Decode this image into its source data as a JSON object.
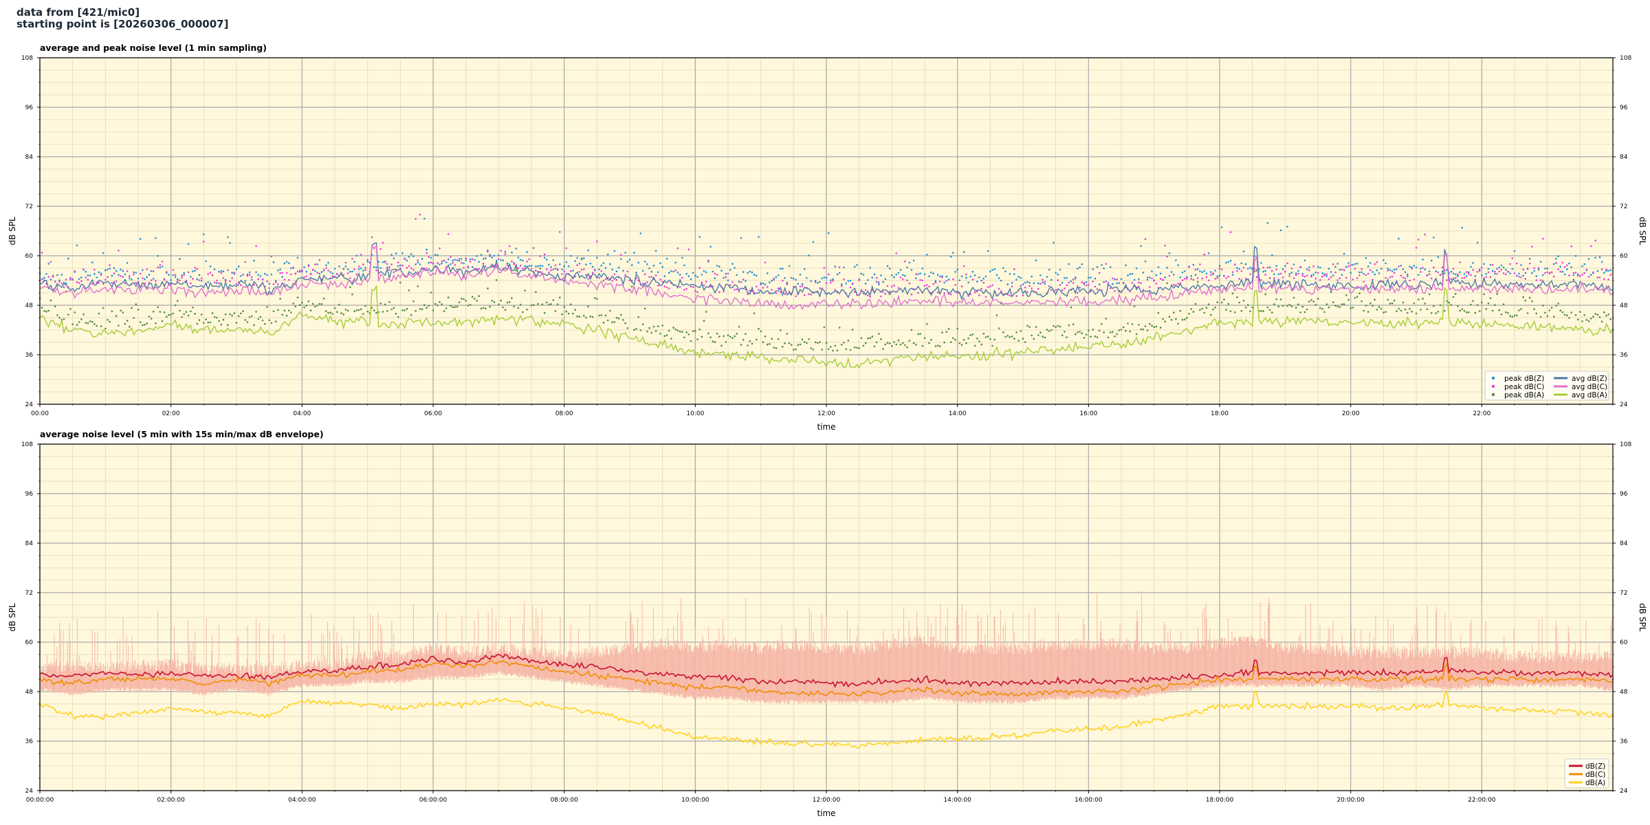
{
  "header": {
    "line1": "data from [421/mic0]",
    "line2": "starting point is [20260306_000007]"
  },
  "colors": {
    "background": "#fff8dc",
    "peak_z": "#1f8fd6",
    "peak_c": "#e83ad8",
    "peak_a": "#4f8a3c",
    "avg_z": "#4a78a8",
    "avg_c": "#e070d0",
    "avg_a": "#a6cc36",
    "db_z": "#c8102e",
    "db_c": "#f08c00",
    "db_a": "#ffd21f",
    "envelope": "#f6b8a8"
  },
  "chart_data": [
    {
      "type": "line",
      "title": "average and peak noise level (1 min sampling)",
      "xlabel": "time",
      "ylabel": "dB SPL",
      "ylim": [
        24,
        108
      ],
      "yticks": [
        "24",
        "36",
        "48",
        "60",
        "72",
        "84",
        "96",
        "108"
      ],
      "xlim_hours": [
        0,
        24
      ],
      "xticks": [
        "00:00",
        "02:00",
        "04:00",
        "06:00",
        "08:00",
        "10:00",
        "12:00",
        "14:00",
        "16:00",
        "18:00",
        "20:00",
        "22:00"
      ],
      "grid": true,
      "legend_position": "bottom-right",
      "x_hours": [
        0,
        0.5,
        1,
        1.5,
        2,
        2.5,
        3,
        3.5,
        4,
        4.5,
        5,
        5.5,
        6,
        6.5,
        7,
        7.5,
        8,
        8.5,
        9,
        9.5,
        10,
        10.5,
        11,
        11.5,
        12,
        12.5,
        13,
        13.5,
        14,
        14.5,
        15,
        15.5,
        16,
        16.5,
        17,
        17.5,
        18,
        18.5,
        19,
        19.5,
        20,
        20.5,
        21,
        21.5,
        22,
        22.5,
        23,
        23.5,
        24
      ],
      "series": [
        {
          "name": "peak dB(Z)",
          "kind": "peak",
          "values": [
            54,
            53,
            55,
            54,
            54,
            53,
            54,
            53,
            55,
            55,
            56,
            57,
            58,
            57,
            58,
            57,
            56,
            56,
            56,
            55,
            54,
            54,
            53,
            53,
            53,
            53,
            53,
            54,
            53,
            53,
            53,
            53,
            53,
            53,
            54,
            54,
            55,
            55,
            55,
            55,
            55,
            55,
            55,
            55,
            55,
            55,
            55,
            55,
            55
          ]
        },
        {
          "name": "peak dB(C)",
          "kind": "peak",
          "values": [
            53,
            52,
            53,
            53,
            53,
            52,
            53,
            52,
            54,
            54,
            55,
            56,
            57,
            56,
            57,
            56,
            55,
            54,
            53,
            52,
            51,
            51,
            50,
            50,
            50,
            50,
            50,
            51,
            50,
            50,
            50,
            51,
            51,
            51,
            52,
            53,
            54,
            54,
            54,
            54,
            54,
            53,
            54,
            53,
            54,
            54,
            54,
            54,
            54
          ]
        },
        {
          "name": "peak dB(A)",
          "kind": "peak",
          "values": [
            46,
            43,
            42,
            43,
            44,
            43,
            43,
            43,
            47,
            45,
            46,
            45,
            46,
            46,
            47,
            46,
            45,
            44,
            42,
            40,
            39,
            38,
            38,
            37,
            37,
            37,
            37,
            38,
            38,
            38,
            39,
            40,
            40,
            40,
            42,
            44,
            46,
            46,
            46,
            46,
            46,
            46,
            46,
            46,
            46,
            45,
            45,
            44,
            44
          ]
        },
        {
          "name": "avg dB(Z)",
          "kind": "avg",
          "values": [
            53,
            52.5,
            53.5,
            53,
            53,
            52.5,
            53,
            52,
            54,
            54,
            55,
            55.5,
            57,
            56,
            57.5,
            56,
            55,
            55,
            54,
            53.5,
            52.5,
            52.5,
            51.5,
            51.5,
            51,
            51,
            51.5,
            52,
            51,
            51,
            51,
            51.5,
            51.5,
            51.5,
            52,
            52.5,
            53,
            53.5,
            53,
            53,
            53,
            53,
            53,
            53.5,
            53,
            53,
            53,
            53,
            52.5
          ]
        },
        {
          "name": "avg dB(C)",
          "kind": "avg",
          "values": [
            52,
            51,
            52,
            52,
            52,
            51,
            52,
            51,
            53,
            53,
            54,
            54.5,
            56,
            55,
            56.5,
            55,
            54,
            53,
            52,
            51,
            49.5,
            49.5,
            48.5,
            48,
            48,
            48,
            48.5,
            49.5,
            48.5,
            48.5,
            48.5,
            49,
            49,
            49,
            50,
            51,
            52,
            52,
            52,
            52,
            52,
            52,
            52,
            52,
            52,
            52,
            52,
            52,
            51.5
          ]
        },
        {
          "name": "avg dB(A)",
          "kind": "avg",
          "values": [
            45,
            42,
            41,
            42,
            43,
            42,
            42,
            41,
            46,
            44,
            44,
            43.5,
            44,
            44,
            45,
            44,
            43,
            42,
            40,
            38,
            36.5,
            36,
            35.5,
            34.5,
            34,
            34,
            34.5,
            35.5,
            35.5,
            36,
            36.5,
            37.5,
            38,
            38.5,
            40,
            42,
            44,
            44,
            44,
            44,
            44,
            43.5,
            44,
            44,
            43.5,
            43,
            43,
            42,
            42
          ]
        }
      ]
    },
    {
      "type": "line",
      "title": "average noise level (5 min with 15s min/max dB envelope)",
      "xlabel": "time",
      "ylabel": "dB SPL",
      "ylim": [
        24,
        108
      ],
      "yticks": [
        "24",
        "36",
        "48",
        "60",
        "72",
        "84",
        "96",
        "108"
      ],
      "xlim_hours": [
        0,
        24
      ],
      "xticks": [
        "00:00:00",
        "02:00:00",
        "04:00:00",
        "06:00:00",
        "08:00:00",
        "10:00:00",
        "12:00:00",
        "14:00:00",
        "16:00:00",
        "18:00:00",
        "20:00:00",
        "22:00:00"
      ],
      "grid": true,
      "legend_position": "bottom-right",
      "x_hours": [
        0,
        0.5,
        1,
        1.5,
        2,
        2.5,
        3,
        3.5,
        4,
        4.5,
        5,
        5.5,
        6,
        6.5,
        7,
        7.5,
        8,
        8.5,
        9,
        9.5,
        10,
        10.5,
        11,
        11.5,
        12,
        12.5,
        13,
        13.5,
        14,
        14.5,
        15,
        15.5,
        16,
        16.5,
        17,
        17.5,
        18,
        18.5,
        19,
        19.5,
        20,
        20.5,
        21,
        21.5,
        22,
        22.5,
        23,
        23.5,
        24
      ],
      "envelope_max": [
        55,
        56,
        55,
        56,
        56,
        55,
        55,
        55,
        56,
        56,
        58,
        58,
        60,
        59,
        60,
        59,
        58,
        59,
        60,
        61,
        60,
        61,
        60,
        61,
        60,
        60,
        61,
        62,
        60,
        60,
        60,
        61,
        61,
        61,
        60,
        60,
        61,
        62,
        60,
        60,
        59,
        59,
        59,
        59,
        59,
        58,
        58,
        58,
        58
      ],
      "envelope_min": [
        49,
        48,
        49,
        49,
        49,
        48,
        49,
        48,
        50,
        50,
        51,
        51,
        52,
        52,
        53,
        52,
        51,
        50,
        49,
        48,
        47,
        47,
        46,
        46,
        46,
        46,
        46,
        47,
        46,
        46,
        46,
        47,
        47,
        47,
        48,
        49,
        50,
        50,
        50,
        50,
        50,
        49,
        50,
        49,
        50,
        50,
        50,
        50,
        49
      ],
      "series": [
        {
          "name": "dB(Z)",
          "values": [
            52,
            51.5,
            53,
            52,
            52.5,
            52,
            52,
            51.5,
            53,
            53,
            54,
            54.5,
            56,
            55,
            57,
            55.5,
            54.5,
            54,
            53,
            52.5,
            51.5,
            51.5,
            50.5,
            50.5,
            50,
            50,
            50.5,
            51,
            50,
            50,
            50,
            50.5,
            50.5,
            50.5,
            51,
            51.5,
            52,
            52.5,
            52.5,
            52.5,
            52.5,
            52.5,
            52.5,
            53,
            52.5,
            52.5,
            52.5,
            52.5,
            52
          ]
        },
        {
          "name": "dB(C)",
          "values": [
            51,
            50,
            51,
            51,
            51,
            50,
            51,
            50,
            52,
            52,
            53,
            53,
            55,
            54,
            55.5,
            54,
            53,
            52,
            51,
            50,
            49,
            49,
            48,
            47.5,
            47.5,
            47.5,
            48,
            48.5,
            47.5,
            47.5,
            47.5,
            48,
            48,
            48,
            49,
            50,
            51,
            51,
            51,
            51,
            51,
            51,
            51,
            51,
            51,
            51,
            51,
            51,
            50.5
          ]
        },
        {
          "name": "dB(A)",
          "values": [
            45,
            42,
            42,
            43,
            44,
            43,
            43,
            42,
            46,
            45,
            45,
            44,
            45,
            45,
            46,
            45,
            44,
            43,
            41,
            39,
            37,
            36.5,
            36,
            35.5,
            35,
            35,
            35.5,
            36.5,
            36.5,
            37,
            37.5,
            38.5,
            39,
            39.5,
            41,
            42.5,
            44.5,
            44.5,
            44.5,
            44.5,
            44.5,
            44,
            44.5,
            45,
            44,
            43.5,
            43.5,
            43,
            42.5
          ]
        }
      ]
    }
  ]
}
